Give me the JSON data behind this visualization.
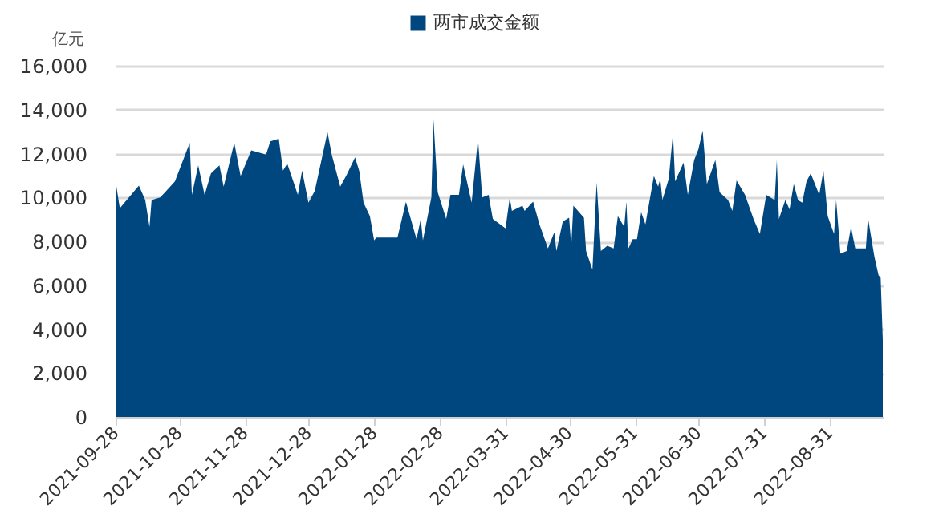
{
  "chart_data": {
    "type": "area",
    "ylabel": "亿元",
    "legend": "top",
    "grid": "y",
    "x": [
      "2021-09-28",
      "2021-09-30",
      "2021-10-09",
      "2021-10-12",
      "2021-10-14",
      "2021-10-15",
      "2021-10-19",
      "2021-10-21",
      "2021-10-26",
      "2021-11-02",
      "2021-11-03",
      "2021-11-06",
      "2021-11-09",
      "2021-11-12",
      "2021-11-16",
      "2021-11-18",
      "2021-11-23",
      "2021-11-26",
      "2021-12-01",
      "2021-12-08",
      "2021-12-10",
      "2021-12-14",
      "2021-12-16",
      "2021-12-18",
      "2021-12-23",
      "2021-12-25",
      "2021-12-28",
      "2021-12-31",
      "2022-01-06",
      "2022-01-08",
      "2022-01-12",
      "2022-01-15",
      "2022-01-19",
      "2022-01-21",
      "2022-01-23",
      "2022-01-26",
      "2022-01-28",
      "2022-01-29",
      "2022-02-08",
      "2022-02-12",
      "2022-02-17",
      "2022-02-19",
      "2022-02-20",
      "2022-02-24",
      "2022-02-25",
      "2022-02-27",
      "2022-03-03",
      "2022-03-05",
      "2022-03-09",
      "2022-03-11",
      "2022-03-15",
      "2022-03-18",
      "2022-03-20",
      "2022-03-23",
      "2022-03-25",
      "2022-03-31",
      "2022-04-02",
      "2022-04-03",
      "2022-04-08",
      "2022-04-09",
      "2022-04-13",
      "2022-04-16",
      "2022-04-20",
      "2022-04-23",
      "2022-04-24",
      "2022-04-27",
      "2022-04-30",
      "2022-05-01",
      "2022-05-02",
      "2022-05-07",
      "2022-05-08",
      "2022-05-11",
      "2022-05-13",
      "2022-05-15",
      "2022-05-18",
      "2022-05-21",
      "2022-05-23",
      "2022-05-26",
      "2022-05-27",
      "2022-05-28",
      "2022-05-30",
      "2022-06-01",
      "2022-06-03",
      "2022-06-05",
      "2022-06-09",
      "2022-06-11",
      "2022-06-12",
      "2022-06-13",
      "2022-06-16",
      "2022-06-18",
      "2022-06-19",
      "2022-06-23",
      "2022-06-25",
      "2022-06-28",
      "2022-06-30",
      "2022-07-02",
      "2022-07-04",
      "2022-07-08",
      "2022-07-10",
      "2022-07-14",
      "2022-07-16",
      "2022-07-18",
      "2022-07-22",
      "2022-07-26",
      "2022-07-29",
      "2022-08-01",
      "2022-08-05",
      "2022-08-06",
      "2022-08-07",
      "2022-08-10",
      "2022-08-12",
      "2022-08-14",
      "2022-08-16",
      "2022-08-18",
      "2022-08-20",
      "2022-08-22",
      "2022-08-26",
      "2022-08-28",
      "2022-08-30",
      "2022-09-02",
      "2022-09-03",
      "2022-09-05",
      "2022-09-08",
      "2022-09-10",
      "2022-09-12",
      "2022-09-17",
      "2022-09-18",
      "2022-09-21",
      "2022-09-23",
      "2022-09-24",
      "2022-09-25"
    ],
    "series": [
      {
        "name": "两市成交金额",
        "color": "#00467f",
        "values": [
          10730,
          9510,
          10540,
          9880,
          8660,
          9880,
          10000,
          10200,
          10730,
          12490,
          10120,
          11460,
          10120,
          11100,
          11460,
          10490,
          12490,
          10980,
          12150,
          11950,
          12560,
          12680,
          11220,
          11540,
          10120,
          11220,
          9760,
          10300,
          12980,
          11950,
          10490,
          11020,
          11830,
          11200,
          9760,
          9150,
          8050,
          8170,
          8170,
          9800,
          8100,
          9020,
          8050,
          10000,
          13540,
          10240,
          9020,
          10120,
          10120,
          11510,
          9760,
          12680,
          10000,
          10120,
          9020,
          8590,
          10000,
          9390,
          9630,
          9390,
          9810,
          8780,
          7680,
          8410,
          7560,
          8900,
          9080,
          7800,
          9630,
          9080,
          7560,
          6710,
          10680,
          7560,
          7800,
          7680,
          9150,
          8660,
          9800,
          7680,
          8100,
          8100,
          9320,
          8780,
          10980,
          10490,
          10850,
          9880,
          10850,
          12930,
          10730,
          11590,
          10120,
          11710,
          12200,
          13050,
          10610,
          11710,
          10240,
          9880,
          9390,
          10780,
          10120,
          9020,
          8340,
          10120,
          9880,
          11710,
          9020,
          9880,
          9460,
          10610,
          9880,
          9760,
          10730,
          11100,
          10120,
          11220,
          9150,
          8340,
          9880,
          7440,
          7560,
          8660,
          7680,
          7680,
          9080,
          7320,
          6460,
          6340,
          3500
        ]
      }
    ],
    "xlim": [
      "2021-09-28",
      "2022-09-25"
    ],
    "xticks": [
      "2021-09-28",
      "2021-10-28",
      "2021-11-28",
      "2021-12-28",
      "2022-01-28",
      "2022-02-28",
      "2022-03-31",
      "2022-04-30",
      "2022-05-31",
      "2022-06-30",
      "2022-07-31",
      "2022-08-31"
    ],
    "ylim": [
      0,
      16000
    ],
    "yticks": [
      {
        "value": 0,
        "label": "0"
      },
      {
        "value": 2000,
        "label": "2,000"
      },
      {
        "value": 4000,
        "label": "4,000"
      },
      {
        "value": 6000,
        "label": "6,000"
      },
      {
        "value": 8000,
        "label": "8,000"
      },
      {
        "value": 10000,
        "label": "10,000"
      },
      {
        "value": 12000,
        "label": "12,000"
      },
      {
        "value": 14000,
        "label": "14,000"
      },
      {
        "value": 16000,
        "label": "16,000"
      }
    ]
  }
}
